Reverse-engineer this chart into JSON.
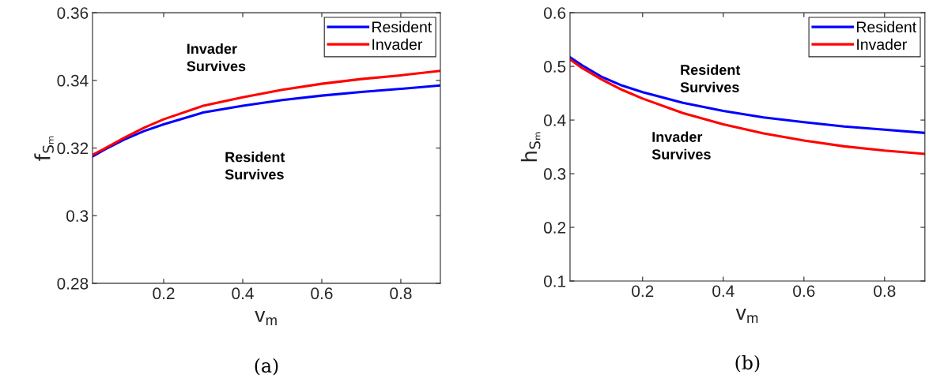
{
  "chart_data": [
    {
      "type": "line",
      "xlabel": "v$_{m}$",
      "ylabel": "f$_{Sₘ}$",
      "x": [
        0.02,
        0.05,
        0.1,
        0.15,
        0.2,
        0.3,
        0.4,
        0.5,
        0.6,
        0.7,
        0.8,
        0.9
      ],
      "series": [
        {
          "name": "Resident",
          "color": "#0000ff",
          "values": [
            0.3175,
            0.3195,
            0.3225,
            0.325,
            0.327,
            0.3305,
            0.3325,
            0.3342,
            0.3355,
            0.3366,
            0.3375,
            0.3385
          ]
        },
        {
          "name": "Invader",
          "color": "#ff0000",
          "values": [
            0.318,
            0.3198,
            0.323,
            0.326,
            0.3285,
            0.3325,
            0.335,
            0.3372,
            0.339,
            0.3404,
            0.3415,
            0.3428
          ]
        }
      ],
      "xlim": [
        0.02,
        0.9
      ],
      "xticks": [
        0.2,
        0.4,
        0.6,
        0.8
      ],
      "ylim": [
        0.28,
        0.36
      ],
      "yticks": [
        0.28,
        0.3,
        0.32,
        0.34,
        0.36
      ],
      "grid": false,
      "legend": "top right",
      "marker": "none",
      "line_style": "solid",
      "annotations": [
        "Invader\nSurvives",
        "Resident\nSurvives",
        "(a)"
      ]
    },
    {
      "type": "line",
      "xlabel": "v$_{m}$",
      "ylabel": "h$_{Sₘ}$",
      "x": [
        0.02,
        0.05,
        0.1,
        0.15,
        0.2,
        0.3,
        0.4,
        0.5,
        0.6,
        0.7,
        0.8,
        0.9
      ],
      "series": [
        {
          "name": "Resident",
          "color": "#0000ff",
          "values": [
            0.517,
            0.502,
            0.48,
            0.464,
            0.452,
            0.432,
            0.417,
            0.405,
            0.396,
            0.388,
            0.382,
            0.376
          ]
        },
        {
          "name": "Invader",
          "color": "#ff0000",
          "values": [
            0.513,
            0.497,
            0.475,
            0.456,
            0.44,
            0.413,
            0.392,
            0.375,
            0.362,
            0.351,
            0.343,
            0.337
          ]
        }
      ],
      "xlim": [
        0.02,
        0.9
      ],
      "xticks": [
        0.2,
        0.4,
        0.6,
        0.8
      ],
      "ylim": [
        0.1,
        0.6
      ],
      "yticks": [
        0.1,
        0.2,
        0.3,
        0.4,
        0.5,
        0.6
      ],
      "grid": false,
      "legend": "top right",
      "marker": "none",
      "line_style": "solid",
      "annotations": [
        "Resident\nSurvives",
        "Invader\nSurvives",
        "(b)"
      ]
    }
  ]
}
